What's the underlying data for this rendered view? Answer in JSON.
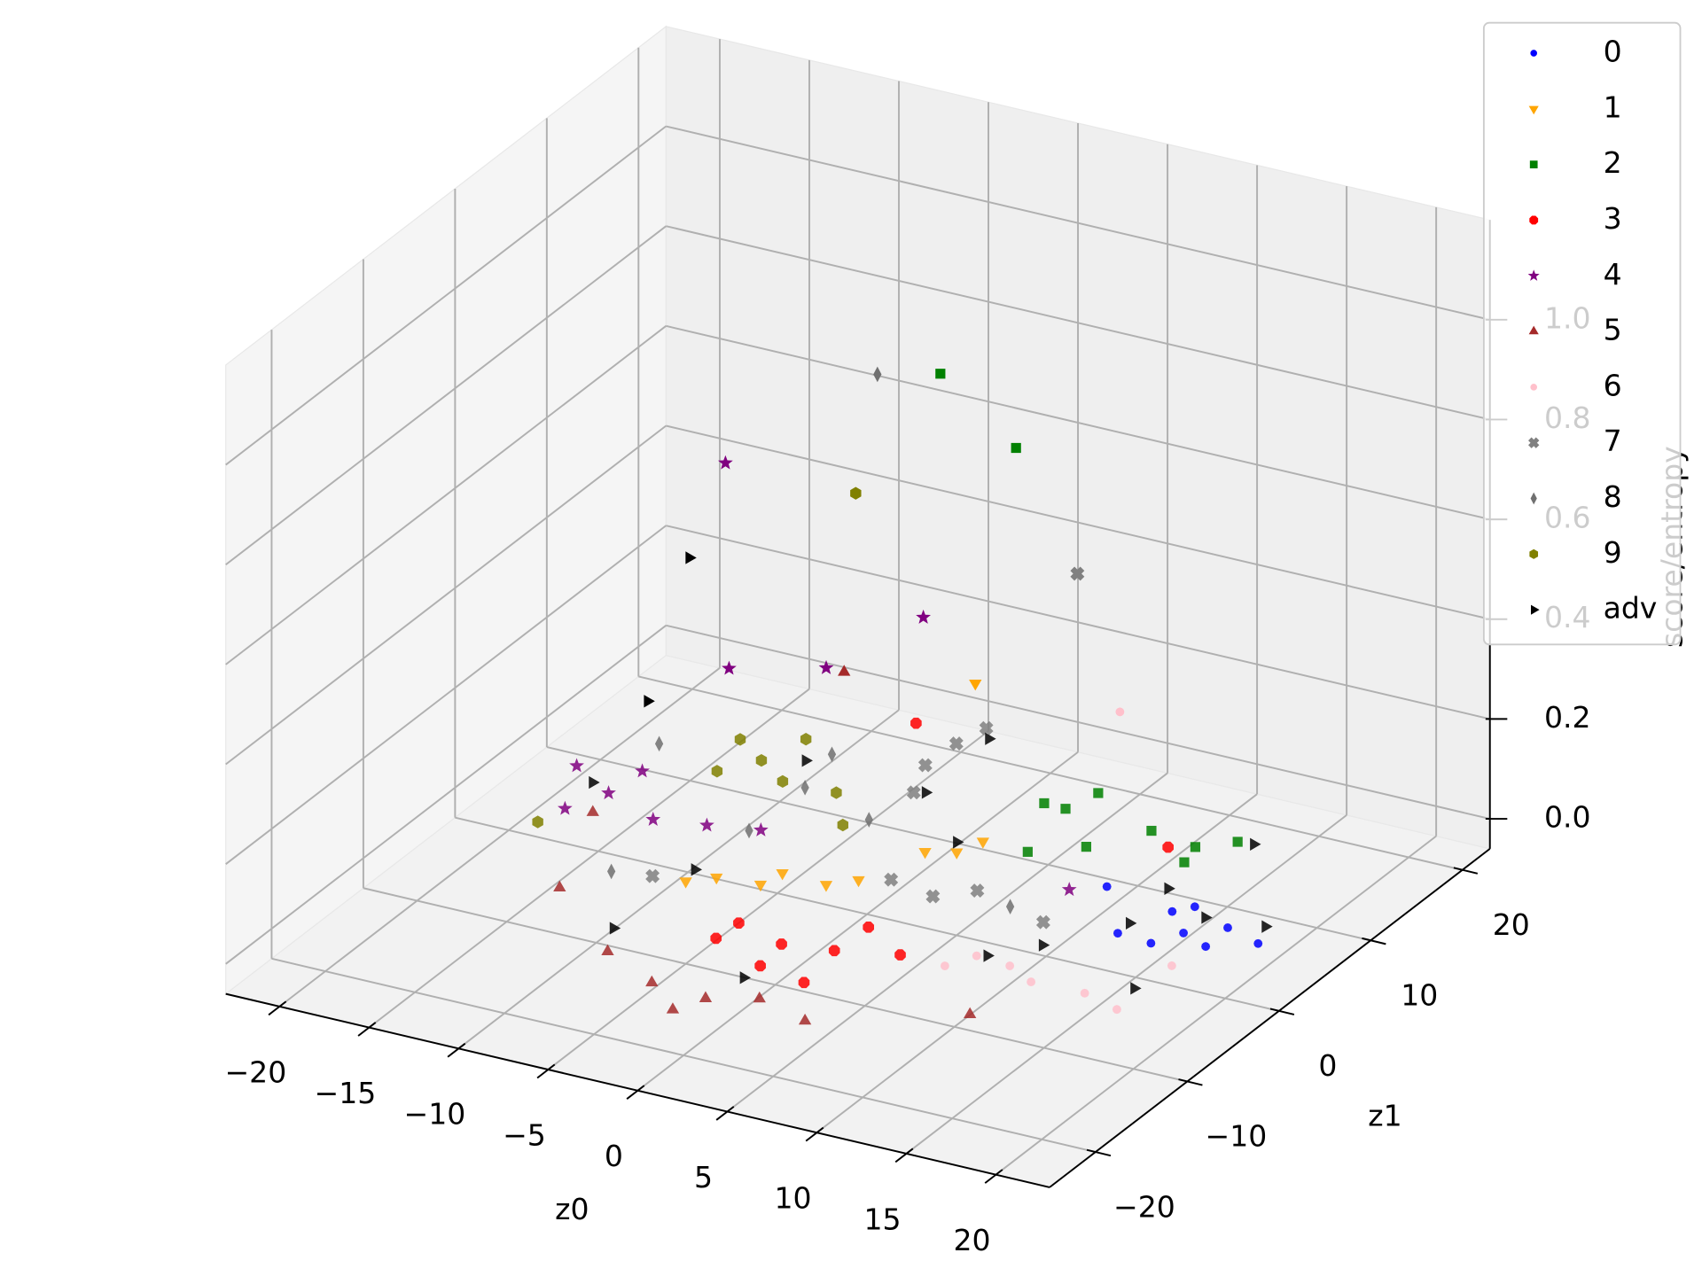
{
  "chart_data": {
    "type": "scatter3d",
    "xlabel": "z0",
    "ylabel": "z1",
    "zlabel": "score/entropy",
    "xlim": [
      -23,
      23
    ],
    "ylim": [
      -25,
      23
    ],
    "zlim": [
      -0.06,
      1.2
    ],
    "xticks": [
      {
        "value": -20,
        "label": "−20"
      },
      {
        "value": -15,
        "label": "−15"
      },
      {
        "value": -10,
        "label": "−10"
      },
      {
        "value": -5,
        "label": "−5"
      },
      0,
      5,
      10,
      15,
      20
    ],
    "yticks": [
      {
        "value": -20,
        "label": "−20"
      },
      {
        "value": -10,
        "label": "−10"
      },
      0,
      10,
      20
    ],
    "zticks": [
      {
        "value": 0,
        "label": "0.0"
      },
      0.2,
      0.4,
      0.6,
      0.8,
      {
        "value": 1,
        "label": "1.0"
      }
    ],
    "grid": true,
    "legend": "upper right",
    "series": [
      {
        "name": "0",
        "color": "#0000ff",
        "marker": "point",
        "x": [
          14.0,
          20.3,
          15.4,
          18.5,
          15.7,
          11.5,
          18.4,
          16.1,
          16.8
        ],
        "y": [
          0.0,
          3.0,
          3.2,
          0.8,
          0.3,
          3.7,
          3.4,
          4.3,
          1.7
        ],
        "z": [
          0.02,
          0.01,
          0.03,
          0.02,
          0.01,
          0.04,
          0.02,
          0.03,
          0.02
        ]
      },
      {
        "name": "1",
        "color": "#ffa500",
        "marker": "triangle_down",
        "x": [
          -7.1,
          -4.0,
          -0.9,
          0.5,
          -3.7,
          1.5,
          2.6,
          3.4,
          -6.0,
          4.0
        ],
        "y": [
          -5.9,
          -3.8,
          -2.7,
          -1.9,
          -2.0,
          3.4,
          4.7,
          6.0,
          -4.7,
          4.0
        ],
        "z": [
          0.03,
          0.02,
          0.03,
          0.04,
          0.02,
          0.03,
          0.02,
          0.03,
          0.03,
          0.38
        ]
      },
      {
        "name": "2",
        "color": "#008000",
        "marker": "square",
        "x": [
          5.4,
          3.9,
          6.2,
          10.3,
          12.8,
          14.6,
          12.9,
          5.9,
          8.4,
          0.0,
          3.2
        ],
        "y": [
          11.1,
          11.7,
          13.1,
          10.9,
          10.8,
          11.9,
          9.4,
          6.0,
          7.5,
          8.0,
          10.0
        ],
        "z": [
          0.04,
          0.03,
          0.05,
          0.04,
          0.03,
          0.04,
          0.02,
          0.03,
          0.04,
          0.91,
          0.76
        ]
      },
      {
        "name": "3",
        "color": "#ff0000",
        "marker": "octagon",
        "x": [
          0.5,
          -2.9,
          0.8,
          3.4,
          3.0,
          3.6,
          -2.5,
          5.9,
          12.2,
          -5.2
        ],
        "y": [
          -10.3,
          -10.8,
          -13.2,
          -10.2,
          -5.7,
          -13.9,
          -9.1,
          -7.9,
          9.0,
          15.5
        ],
        "z": [
          0.03,
          0.02,
          0.03,
          0.04,
          0.02,
          0.03,
          0.03,
          0.02,
          0.05,
          0.06
        ]
      },
      {
        "name": "4",
        "color": "#800080",
        "marker": "star",
        "x": [
          -15.3,
          -17.9,
          -12.2,
          -9.3,
          -7.0,
          -16.3,
          -14.8,
          9.5,
          -12.0,
          -3.0,
          -7.4,
          -11.8
        ],
        "y": [
          1.7,
          3.3,
          0.5,
          0.7,
          2.1,
          -1.1,
          4.4,
          3.5,
          8.0,
          12.0,
          10.0,
          8.0
        ],
        "z": [
          0.03,
          0.04,
          0.02,
          0.03,
          0.02,
          0.03,
          0.04,
          0.02,
          0.63,
          0.34,
          0.23,
          0.22
        ]
      },
      {
        "name": "5",
        "color": "#a52a2a",
        "marker": "triangle_up",
        "x": [
          0,
          -2.9,
          -6.8,
          2.6,
          5.5,
          -0.5,
          -12.4,
          -14.9,
          12.2,
          -6.4
        ],
        "y": [
          -17.6,
          -17.8,
          -15.0,
          -16.8,
          -17.5,
          -20.2,
          -9.3,
          -0.8,
          -12.6,
          10.0
        ],
        "z": [
          0.02,
          0.03,
          0.02,
          0.03,
          0.02,
          0.03,
          0.02,
          0.03,
          0.02,
          0.23
        ]
      },
      {
        "name": "6",
        "color": "#ffc0cb",
        "marker": "point",
        "x": [
          9.5,
          13.0,
          16.2,
          18.2,
          8.7,
          11.2,
          18.4,
          9.0
        ],
        "y": [
          -6.6,
          -7.5,
          -7.9,
          -8.3,
          -8.5,
          -6.3,
          -2.7,
          10.0
        ],
        "z": [
          0.03,
          0.02,
          0.03,
          0.02,
          0.03,
          0.02,
          0.03,
          0.28
        ]
      },
      {
        "name": "7",
        "color": "#808080",
        "marker": "x",
        "x": [
          -2.9,
          -3.3,
          -2.2,
          1.6,
          4.6,
          5.9,
          -2.0,
          10.2,
          -8.8,
          5.6
        ],
        "y": [
          15.4,
          12.8,
          17.3,
          -0.5,
          -1.8,
          0.5,
          9.0,
          -0.7,
          -6.2,
          12.0
        ],
        "z": [
          0.04,
          0.03,
          0.05,
          0.03,
          0.04,
          0.03,
          0.04,
          0.02,
          0.03,
          0.5
        ]
      },
      {
        "name": "8",
        "color": "#707070",
        "marker": "thin_diamond",
        "x": [
          -7.9,
          -2.4,
          -7.2,
          -11.1,
          8.2,
          -15.6,
          -7.2,
          -7.1
        ],
        "y": [
          11.6,
          4.9,
          1.2,
          -6.2,
          -0.4,
          7.8,
          7.3,
          15.0
        ],
        "z": [
          0.03,
          0.04,
          0.03,
          0.02,
          0.03,
          0.04,
          0.03,
          0.75
        ]
      },
      {
        "name": "9",
        "color": "#808000",
        "marker": "hexagon",
        "x": [
          -10.3,
          -12.1,
          -8.5,
          -11.6,
          -9.3,
          -17.0,
          -3.5,
          -5.3,
          -7.8
        ],
        "y": [
          8.6,
          9.8,
          7.4,
          6.3,
          11.5,
          -2.7,
          4.2,
          7.0,
          14.0
        ],
        "z": [
          0.04,
          0.05,
          0.03,
          0.04,
          0.05,
          0.02,
          0.03,
          0.04,
          0.52
        ]
      },
      {
        "name": "adv",
        "color": "#000000",
        "marker": "triangle_right",
        "x": [
          -6.8,
          -8.4,
          -1.5,
          14.5,
          17.7,
          20.5,
          18.6,
          12.0,
          10.5,
          -7.3,
          15.7,
          2.6,
          14.5,
          -16.3,
          1.3,
          -1.5,
          -13.0,
          -14.3
        ],
        "y": [
          -5.5,
          9.7,
          16.2,
          0.3,
          2.3,
          3.4,
          -7.2,
          -4.3,
          -7.4,
          -13.4,
          11.5,
          4.7,
          4.5,
          1.9,
          -16.0,
          9.3,
          6.0,
          4.0
        ],
        "z": [
          0.05,
          0.04,
          0.05,
          0.04,
          0.05,
          0.04,
          0.05,
          0.04,
          0.05,
          0.04,
          0.05,
          0.04,
          0.05,
          0.04,
          0.05,
          0.04,
          0.46,
          0.19
        ]
      }
    ]
  }
}
